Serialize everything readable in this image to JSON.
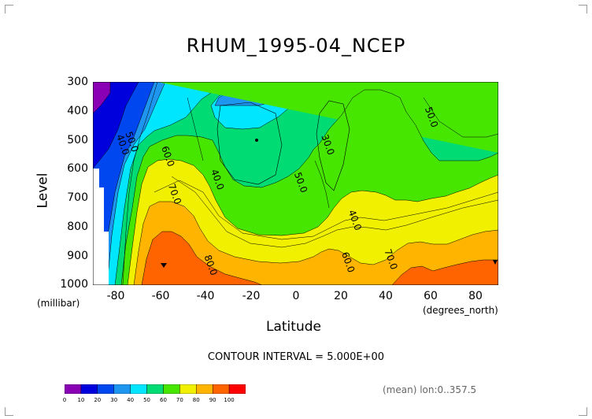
{
  "chart_data": {
    "type": "heatmap",
    "subtype": "filled-contour",
    "title": "RHUM_1995-04_NCEP",
    "xlabel": "Latitude",
    "ylabel": "Level",
    "x_unit": "(degrees_north)",
    "y_unit": "(millibar)",
    "x_ticks": [
      "-80",
      "-60",
      "-40",
      "-20",
      "0",
      "20",
      "40",
      "60",
      "80"
    ],
    "y_ticks": [
      "300",
      "400",
      "500",
      "600",
      "700",
      "800",
      "900",
      "1000"
    ],
    "xlim": [
      -90,
      90
    ],
    "ylim": [
      1000,
      300
    ],
    "y_reversed": true,
    "contour_interval_text": "CONTOUR INTERVAL = 5.000E+00",
    "footnote": "(mean) lon:0..357.5",
    "contour_labels": [
      {
        "text": "40.0",
        "x": -78,
        "y": 520
      },
      {
        "text": "50.0",
        "x": -74,
        "y": 510
      },
      {
        "text": "60.0",
        "x": -58,
        "y": 560
      },
      {
        "text": "70.0",
        "x": -55,
        "y": 690
      },
      {
        "text": "80.0",
        "x": -39,
        "y": 935
      },
      {
        "text": "40.0",
        "x": -36,
        "y": 640
      },
      {
        "text": "30.0",
        "x": 13,
        "y": 520
      },
      {
        "text": "50.0",
        "x": 1,
        "y": 650
      },
      {
        "text": "40.0",
        "x": 25,
        "y": 780
      },
      {
        "text": "60.0",
        "x": 22,
        "y": 925
      },
      {
        "text": "70.0",
        "x": 41,
        "y": 915
      },
      {
        "text": "50.0",
        "x": 59,
        "y": 425
      }
    ],
    "colorbar": {
      "levels": [
        "0",
        "10",
        "20",
        "30",
        "40",
        "50",
        "60",
        "70",
        "80",
        "90",
        "100"
      ],
      "colors": [
        "#8a00b4",
        "#0000dc",
        "#0047f0",
        "#1e96f0",
        "#00e6ff",
        "#00dc73",
        "#46e600",
        "#f0f000",
        "#ffb400",
        "#ff6400",
        "#ff0000"
      ]
    }
  }
}
